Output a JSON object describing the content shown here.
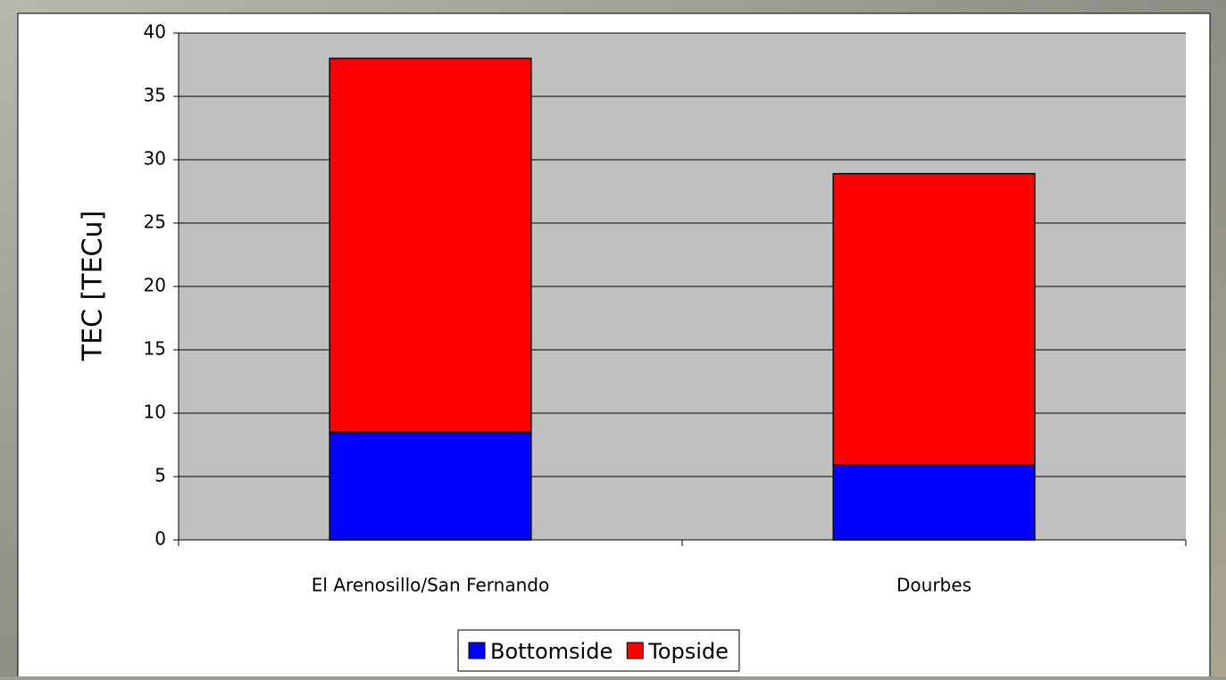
{
  "chart_data": {
    "type": "stacked_bar",
    "y_label": "TEC [TECu]",
    "categories": [
      "El Arenosillo/San Fernando",
      "Dourbes"
    ],
    "series": [
      {
        "name": "Bottomside",
        "color": "#0000ff",
        "values": [
          8.5,
          5.9
        ]
      },
      {
        "name": "Topside",
        "color": "#ff0000",
        "values": [
          29.5,
          23.0
        ]
      }
    ],
    "ylim": [
      0,
      40
    ],
    "yticks": [
      0,
      5,
      10,
      15,
      20,
      25,
      30,
      35,
      40
    ],
    "grid": true,
    "legend": "bottom"
  }
}
